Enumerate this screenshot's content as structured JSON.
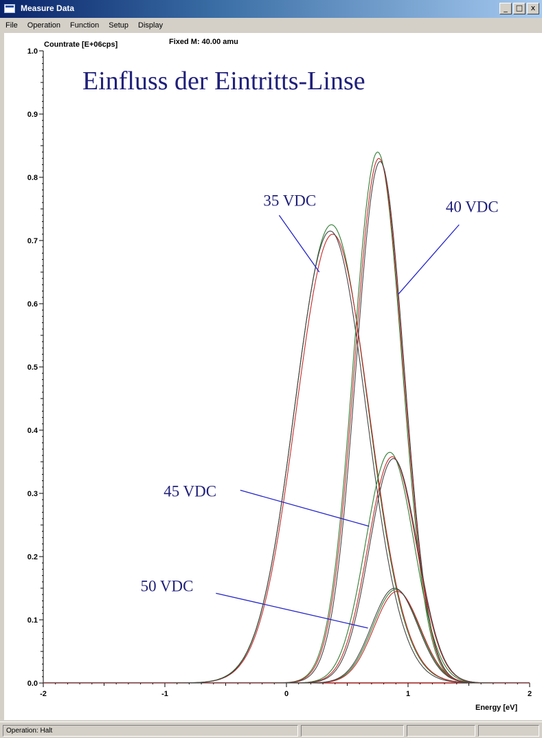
{
  "window": {
    "title": "Measure Data",
    "buttons": [
      "_",
      "□",
      "x"
    ]
  },
  "menu": [
    "File",
    "Operation",
    "Function",
    "Setup",
    "Display"
  ],
  "status": {
    "panes": [
      "Operation: Halt",
      "",
      "",
      ""
    ]
  },
  "chart_data": {
    "type": "line",
    "title": "Einfluss der Eintritts-Linse",
    "subtitle": "Fixed M: 40.00 amu",
    "ylabel": "Countrate [E+06cps]",
    "xlabel": "Energy [eV]",
    "xlim": [
      -2,
      2
    ],
    "ylim": [
      0,
      1.0
    ],
    "xticks": [
      "-2",
      "-1",
      "0",
      "1",
      "2"
    ],
    "yticks": [
      "0.0",
      "0.1",
      "0.2",
      "0.3",
      "0.4",
      "0.5",
      "0.6",
      "0.7",
      "0.8",
      "0.9",
      "1.0"
    ],
    "grid": false,
    "legend": "none",
    "series": [
      {
        "group": "35 VDC",
        "color": "#2e7d32",
        "peak_x": 0.37,
        "peak_y": 0.725,
        "sigma": 0.3
      },
      {
        "group": "35 VDC",
        "color": "#c62828",
        "peak_x": 0.38,
        "peak_y": 0.71,
        "sigma": 0.3
      },
      {
        "group": "35 VDC",
        "color": "#444444",
        "peak_x": 0.36,
        "peak_y": 0.715,
        "sigma": 0.295
      },
      {
        "group": "40 VDC",
        "color": "#2e7d32",
        "peak_x": 0.75,
        "peak_y": 0.84,
        "sigma": 0.2
      },
      {
        "group": "40 VDC",
        "color": "#c62828",
        "peak_x": 0.76,
        "peak_y": 0.83,
        "sigma": 0.2
      },
      {
        "group": "40 VDC",
        "color": "#444444",
        "peak_x": 0.77,
        "peak_y": 0.825,
        "sigma": 0.198
      },
      {
        "group": "45 VDC",
        "color": "#2e7d32",
        "peak_x": 0.85,
        "peak_y": 0.365,
        "sigma": 0.2
      },
      {
        "group": "45 VDC",
        "color": "#c62828",
        "peak_x": 0.87,
        "peak_y": 0.358,
        "sigma": 0.2
      },
      {
        "group": "45 VDC",
        "color": "#444444",
        "peak_x": 0.88,
        "peak_y": 0.355,
        "sigma": 0.198
      },
      {
        "group": "50 VDC",
        "color": "#2e7d32",
        "peak_x": 0.9,
        "peak_y": 0.148,
        "sigma": 0.19
      },
      {
        "group": "50 VDC",
        "color": "#c62828",
        "peak_x": 0.91,
        "peak_y": 0.145,
        "sigma": 0.19
      },
      {
        "group": "50 VDC",
        "color": "#444444",
        "peak_x": 0.89,
        "peak_y": 0.15,
        "sigma": 0.19
      }
    ],
    "annotations": [
      {
        "text": "35 VDC",
        "label_x": -0.19,
        "label_y": 0.755,
        "point_x": 0.27,
        "point_y": 0.65,
        "line_from_x": -0.06,
        "line_from_y": 0.74
      },
      {
        "text": "40 VDC",
        "label_x": 1.31,
        "label_y": 0.745,
        "point_x": 0.92,
        "point_y": 0.615,
        "line_from_x": 1.42,
        "line_from_y": 0.725
      },
      {
        "text": "45 VDC",
        "label_x": -1.01,
        "label_y": 0.295,
        "point_x": 0.68,
        "point_y": 0.248,
        "line_from_x": -0.38,
        "line_from_y": 0.305
      },
      {
        "text": "50 VDC",
        "label_x": -1.2,
        "label_y": 0.145,
        "point_x": 0.67,
        "point_y": 0.087,
        "line_from_x": -0.58,
        "line_from_y": 0.142
      }
    ]
  }
}
